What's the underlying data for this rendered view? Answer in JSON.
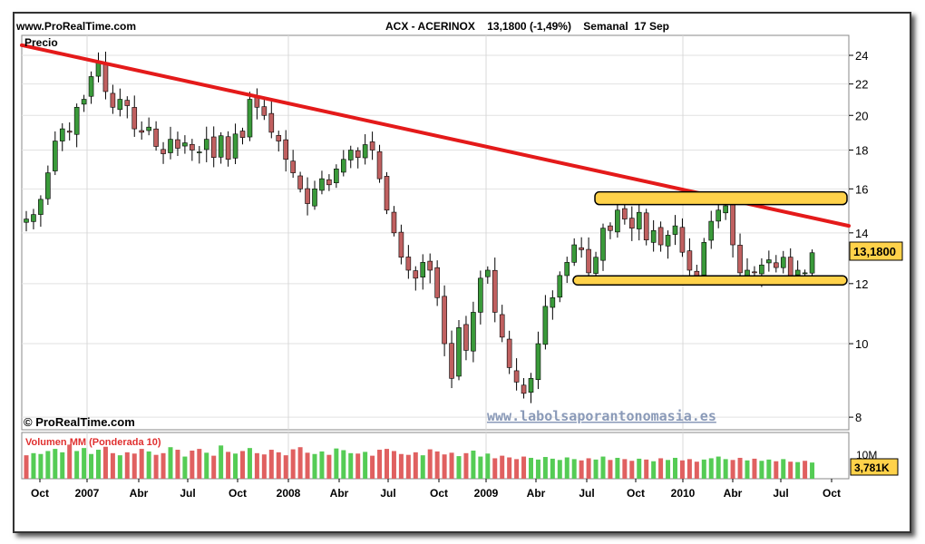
{
  "header": {
    "site": "www.ProRealTime.com",
    "title": "ACX - ACERINOX    13,1800 (-1,49%)    Semanal  17 Sep"
  },
  "footer": {
    "copyright": "© ProRealTime.com",
    "watermark": "www.labolsaporantonomasia.es"
  },
  "colors": {
    "up": "#3a9a3a",
    "down": "#c06060",
    "trendline": "#e41a1a",
    "channel_fill": "#ffd24a",
    "last_price_bg": "#ffd24a"
  },
  "chart_data": [
    {
      "type": "candlestick",
      "title": "Precio",
      "scale": "log",
      "ylim": [
        7.7,
        25.5
      ],
      "y_ticks": [
        24,
        22,
        20,
        18,
        16,
        14,
        12,
        10,
        8
      ],
      "x_ticks": [
        "Oct",
        "2007",
        "Abr",
        "Jul",
        "Oct",
        "2008",
        "Abr",
        "Jul",
        "Oct",
        "2009",
        "Abr",
        "Jul",
        "Oct",
        "2010",
        "Abr",
        "Jul",
        "Oct"
      ],
      "last_price": "13,1800",
      "series": [
        {
          "values": [
            14.6,
            14.8,
            15.5,
            16.8,
            18.5,
            19.2,
            19.0,
            20.5,
            21.0,
            22.5,
            23.5,
            21.5,
            20.5,
            21.0,
            20.6,
            19.2,
            19.0,
            19.3,
            18.2,
            17.8,
            18.6,
            18.1,
            18.4,
            18.0,
            17.9,
            18.6,
            17.6,
            18.8,
            17.5,
            18.9,
            18.7,
            21.0,
            20.5,
            20.0,
            19.0,
            18.5,
            17.5,
            16.8,
            16.0,
            15.3,
            16.0,
            16.5,
            16.2,
            17.0,
            17.5,
            18.0,
            17.6,
            18.3,
            18.0,
            16.5,
            15.0,
            14.0,
            13.0,
            12.5,
            12.2,
            12.8,
            12.5,
            11.5,
            10.0,
            9.0,
            10.5,
            9.8,
            11.0,
            12.2,
            12.5,
            11.0,
            10.2,
            9.3,
            8.9,
            8.6,
            9.0,
            10.0,
            11.2,
            11.5,
            12.3,
            12.8,
            13.5,
            13.3,
            12.4,
            13.0,
            14.2,
            14.1,
            15.0,
            14.6,
            14.2,
            14.9,
            13.7,
            14.1,
            13.5,
            13.9,
            14.3,
            13.2,
            12.5,
            12.3,
            13.6,
            14.5,
            15.0,
            15.2,
            13.5,
            12.4,
            12.5,
            12.4,
            12.7,
            12.9,
            12.6,
            13.0,
            12.3,
            12.5,
            12.4,
            13.18
          ]
        },
        {
          "name": "Volumen MM (Ponderada 10)",
          "type": "bar",
          "axis_label": "10M",
          "last_value": "3,781K",
          "values": [
            5.5,
            6.0,
            5.8,
            6.5,
            7.0,
            6.2,
            8.0,
            6.5,
            7.2,
            5.8,
            6.8,
            7.5,
            6.0,
            5.5,
            6.2,
            5.9,
            7.0,
            6.4,
            5.6,
            6.0,
            7.4,
            6.8,
            5.2,
            6.6,
            7.0,
            6.1,
            5.4,
            7.8,
            6.3,
            5.9,
            6.5,
            7.2,
            6.0,
            5.7,
            6.8,
            6.2,
            5.5,
            6.9,
            7.4,
            6.1,
            5.8,
            6.4,
            5.6,
            7.1,
            6.7,
            6.0,
            5.9,
            6.3,
            5.4,
            6.8,
            7.0,
            6.5,
            5.8,
            5.6,
            6.2,
            5.5,
            6.9,
            6.4,
            5.7,
            6.1,
            5.3,
            6.0,
            6.6,
            5.2,
            5.9,
            4.8,
            5.4,
            5.0,
            4.6,
            5.2,
            4.9,
            4.5,
            5.1,
            4.7,
            4.4,
            5.0,
            4.6,
            4.3,
            4.8,
            4.5,
            5.2,
            4.4,
            4.9,
            4.6,
            4.2,
            4.7,
            4.5,
            4.1,
            4.8,
            4.4,
            4.9,
            4.3,
            4.6,
            4.0,
            4.5,
            4.8,
            5.2,
            4.6,
            4.4,
            4.9,
            4.3,
            4.7,
            4.2,
            4.5,
            4.1,
            4.6,
            4.0,
            3.9,
            4.2,
            3.8
          ]
        }
      ]
    }
  ]
}
